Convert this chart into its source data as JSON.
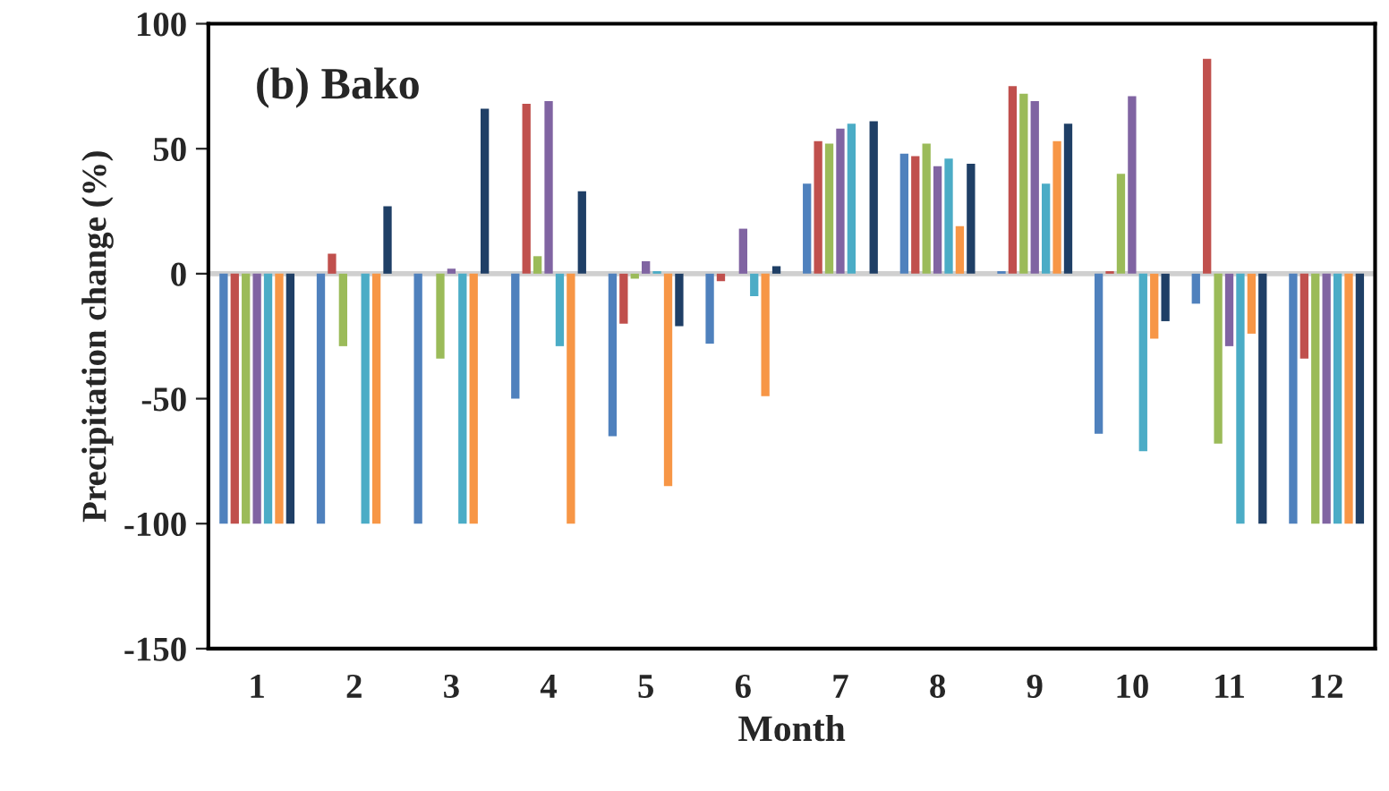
{
  "chart_data": {
    "type": "bar",
    "title": "(b) Bako",
    "xlabel": "Month",
    "ylabel": "Precipitation change (%)",
    "categories": [
      "1",
      "2",
      "3",
      "4",
      "5",
      "6",
      "7",
      "8",
      "9",
      "10",
      "11",
      "12"
    ],
    "series": [
      {
        "color": "#4f81bd",
        "values": [
          -100,
          -100,
          -100,
          -50,
          -65,
          -28,
          36,
          48,
          1,
          -64,
          -12,
          -100
        ]
      },
      {
        "color": "#c0504d",
        "values": [
          -100,
          8,
          null,
          68,
          -20,
          -3,
          53,
          47,
          75,
          1,
          86,
          -34
        ]
      },
      {
        "color": "#9bbb59",
        "values": [
          -100,
          -29,
          -34,
          7,
          -2,
          null,
          52,
          52,
          72,
          40,
          -68,
          -100
        ]
      },
      {
        "color": "#8064a2",
        "values": [
          -100,
          null,
          2,
          69,
          5,
          18,
          58,
          43,
          69,
          71,
          -29,
          -100
        ]
      },
      {
        "color": "#4bacc6",
        "values": [
          -100,
          -100,
          -100,
          -29,
          1,
          -9,
          60,
          46,
          36,
          -71,
          -100,
          -100
        ]
      },
      {
        "color": "#f79646",
        "values": [
          -100,
          -100,
          -100,
          -100,
          -85,
          -49,
          null,
          19,
          53,
          -26,
          -24,
          -100
        ]
      },
      {
        "color": "#1f3f66",
        "values": [
          -100,
          27,
          66,
          33,
          -21,
          3,
          61,
          44,
          60,
          -19,
          -100,
          -100
        ]
      }
    ],
    "ylim": [
      -150,
      100
    ],
    "yticks": [
      -150,
      -100,
      -50,
      0,
      50,
      100
    ],
    "ref_lines": [
      {
        "axis": "y",
        "value": 0,
        "color": "#d0d0d0"
      }
    ],
    "grid": false,
    "legend": false
  }
}
